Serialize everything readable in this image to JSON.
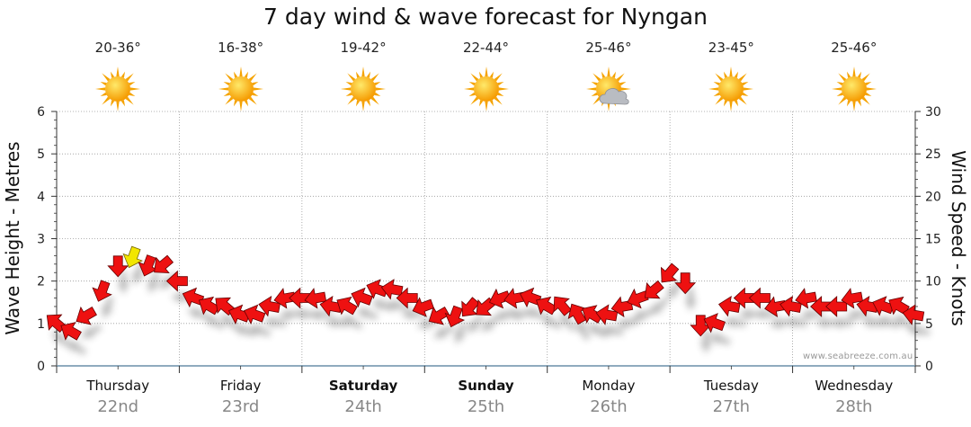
{
  "chart_data": {
    "type": "line",
    "title": "7 day wind & wave forecast for Nyngan",
    "ylabel_left": "Wave Height - Metres",
    "ylabel_right": "Wind Speed - Knots",
    "y_left_range": [
      0,
      6
    ],
    "y_left_ticks": [
      0,
      1,
      2,
      3,
      4,
      5,
      6
    ],
    "y_right_range": [
      0,
      30
    ],
    "y_right_ticks": [
      0,
      5,
      10,
      15,
      20,
      25,
      30
    ],
    "grid": true,
    "days": [
      {
        "name": "Thursday",
        "date": "22nd",
        "bold": false,
        "temp": "20-36°",
        "icon": "sun-icon"
      },
      {
        "name": "Friday",
        "date": "23rd",
        "bold": false,
        "temp": "16-38°",
        "icon": "sun-icon"
      },
      {
        "name": "Saturday",
        "date": "24th",
        "bold": true,
        "temp": "19-42°",
        "icon": "sun-icon"
      },
      {
        "name": "Sunday",
        "date": "25th",
        "bold": true,
        "temp": "22-44°",
        "icon": "sun-icon"
      },
      {
        "name": "Monday",
        "date": "26th",
        "bold": false,
        "temp": "25-46°",
        "icon": "sun-cloud-icon"
      },
      {
        "name": "Tuesday",
        "date": "27th",
        "bold": false,
        "temp": "23-45°",
        "icon": "sun-icon"
      },
      {
        "name": "Wednesday",
        "date": "28th",
        "bold": false,
        "temp": "25-46°",
        "icon": "sun-icon"
      }
    ],
    "series": [
      {
        "name": "",
        "kind": "wind-arrows",
        "x_hours": [
          0,
          3,
          6,
          9,
          12,
          15,
          18,
          21,
          24,
          27,
          30,
          33,
          36,
          39,
          42,
          45,
          48,
          51,
          54,
          57,
          60,
          63,
          66,
          69,
          72,
          75,
          78,
          81,
          84,
          87,
          90,
          93,
          96,
          99,
          102,
          105,
          108,
          111,
          114,
          117,
          120,
          123,
          126,
          129,
          132,
          135,
          138,
          141,
          144,
          147,
          150,
          153,
          156,
          159,
          162,
          165,
          168
        ],
        "speed_knots": [
          5,
          4,
          6,
          9,
          12,
          13,
          12,
          12,
          10,
          8,
          7,
          7,
          6,
          6,
          7,
          8,
          8,
          8,
          7,
          7,
          8,
          9,
          9,
          8,
          7,
          6,
          6,
          7,
          7,
          8,
          8,
          8,
          7,
          7,
          6,
          6,
          6,
          7,
          8,
          9,
          11,
          10,
          5,
          5,
          7,
          8,
          8,
          7,
          7,
          8,
          7,
          7,
          8,
          7,
          7,
          7,
          6
        ],
        "direction_deg": [
          310,
          300,
          240,
          200,
          180,
          200,
          200,
          230,
          270,
          290,
          300,
          310,
          290,
          290,
          280,
          260,
          270,
          260,
          280,
          300,
          290,
          290,
          280,
          270,
          250,
          240,
          200,
          220,
          230,
          250,
          260,
          290,
          300,
          320,
          330,
          300,
          280,
          260,
          250,
          230,
          220,
          180,
          180,
          290,
          280,
          270,
          270,
          260,
          280,
          260,
          270,
          270,
          260,
          280,
          290,
          300,
          280
        ],
        "highlight_index": 5,
        "highlight_color": "#f2e600"
      }
    ],
    "colors": {
      "arrow": "#ee1111",
      "arrow_stroke": "#660000",
      "grid": "#9a9a9a",
      "axis": "#333333"
    }
  },
  "footer": {
    "watermark": "www.seabreeze.com.au"
  }
}
